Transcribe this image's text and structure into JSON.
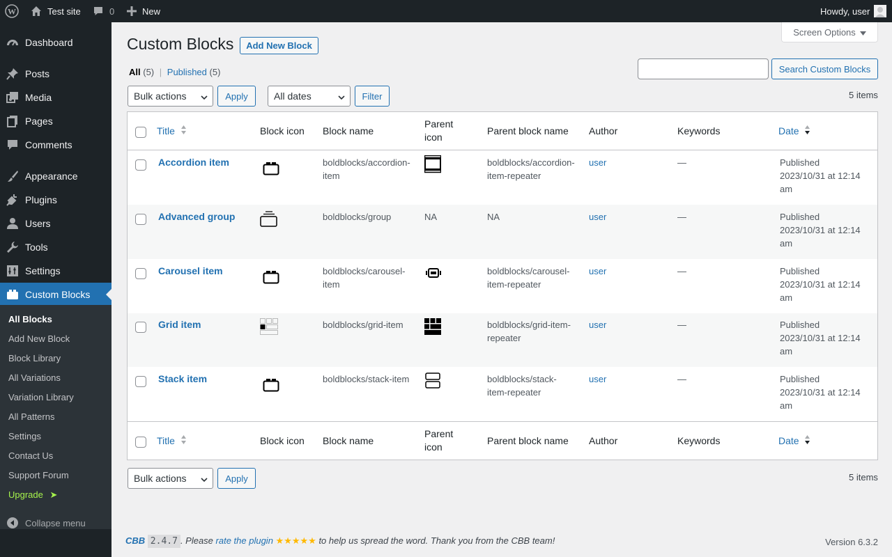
{
  "adminbar": {
    "site_name": "Test site",
    "comments_count": "0",
    "new_label": "New",
    "howdy": "Howdy, user"
  },
  "sidebar": {
    "items": [
      {
        "label": "Dashboard",
        "icon": "dashboard-icon"
      },
      {
        "label": "Posts",
        "icon": "pin-icon"
      },
      {
        "label": "Media",
        "icon": "media-icon"
      },
      {
        "label": "Pages",
        "icon": "pages-icon"
      },
      {
        "label": "Comments",
        "icon": "comment-icon"
      },
      {
        "label": "Appearance",
        "icon": "brush-icon"
      },
      {
        "label": "Plugins",
        "icon": "plug-icon"
      },
      {
        "label": "Users",
        "icon": "user-icon"
      },
      {
        "label": "Tools",
        "icon": "wrench-icon"
      },
      {
        "label": "Settings",
        "icon": "settings-icon"
      },
      {
        "label": "Custom Blocks",
        "icon": "block-icon"
      }
    ],
    "submenu": [
      "All Blocks",
      "Add New Block",
      "Block Library",
      "All Variations",
      "Variation Library",
      "All Patterns",
      "Settings",
      "Contact Us",
      "Support Forum",
      "Upgrade"
    ],
    "upgrade_arrow": "➤",
    "collapse_label": "Collapse menu"
  },
  "screen_options": "Screen Options",
  "page": {
    "title": "Custom Blocks",
    "add_new": "Add New Block",
    "filter_all": "All",
    "filter_all_count": "(5)",
    "filter_sep": "|",
    "filter_published": "Published",
    "filter_published_count": "(5)",
    "search_button": "Search Custom Blocks",
    "search_value": "",
    "bulk_actions": "Bulk actions",
    "apply": "Apply",
    "all_dates": "All dates",
    "filter": "Filter",
    "items_count": "5 items"
  },
  "table": {
    "columns": {
      "title": "Title",
      "block_icon": "Block icon",
      "block_name": "Block name",
      "parent_icon_1": "Parent",
      "parent_icon_2": "icon",
      "parent_block_name": "Parent block name",
      "author": "Author",
      "keywords": "Keywords",
      "date": "Date"
    },
    "rows": [
      {
        "title": "Accordion item",
        "block_icon": "block-icon",
        "block_name_1": "boldblocks/accordion-",
        "block_name_2": "item",
        "parent_icon": "accordion-repeater-icon",
        "parent_name_1": "boldblocks/accordion-",
        "parent_name_2": "item-repeater",
        "author": "user",
        "keywords": "—",
        "date_1": "Published",
        "date_2": "2023/10/31 at 12:14",
        "date_3": "am"
      },
      {
        "title": "Advanced group",
        "block_icon": "group-icon",
        "block_name_1": "boldblocks/group",
        "block_name_2": "",
        "parent_icon": "NA",
        "parent_name_1": "NA",
        "parent_name_2": "",
        "author": "user",
        "keywords": "—",
        "date_1": "Published",
        "date_2": "2023/10/31 at 12:14",
        "date_3": "am"
      },
      {
        "title": "Carousel item",
        "block_icon": "block-icon",
        "block_name_1": "boldblocks/carousel-",
        "block_name_2": "item",
        "parent_icon": "carousel-repeater-icon",
        "parent_name_1": "boldblocks/carousel-",
        "parent_name_2": "item-repeater",
        "author": "user",
        "keywords": "—",
        "date_1": "Published",
        "date_2": "2023/10/31 at 12:14",
        "date_3": "am"
      },
      {
        "title": "Grid item",
        "block_icon": "grid-item-icon",
        "block_name_1": "boldblocks/grid-item",
        "block_name_2": "",
        "parent_icon": "grid-repeater-icon",
        "parent_name_1": "boldblocks/grid-item-",
        "parent_name_2": "repeater",
        "author": "user",
        "keywords": "—",
        "date_1": "Published",
        "date_2": "2023/10/31 at 12:14",
        "date_3": "am"
      },
      {
        "title": "Stack item",
        "block_icon": "block-icon",
        "block_name_1": "boldblocks/stack-item",
        "block_name_2": "",
        "parent_icon": "stack-repeater-icon",
        "parent_name_1": "boldblocks/stack-",
        "parent_name_2": "item-repeater",
        "author": "user",
        "keywords": "—",
        "date_1": "Published",
        "date_2": "2023/10/31 at 12:14",
        "date_3": "am"
      }
    ]
  },
  "footer": {
    "cbb": "CBB",
    "version_badge": "2.4.7",
    "text_1": ". Please ",
    "rate_link": "rate the plugin",
    "stars": " ★★★★★",
    "text_2": " to help us spread the word. Thank you from the CBB team!",
    "wp_version": "Version 6.3.2"
  },
  "colors": {
    "accent": "#2271b1",
    "admin_bg": "#1d2327",
    "upgrade": "#a6f34c",
    "stars": "#ffb900"
  }
}
